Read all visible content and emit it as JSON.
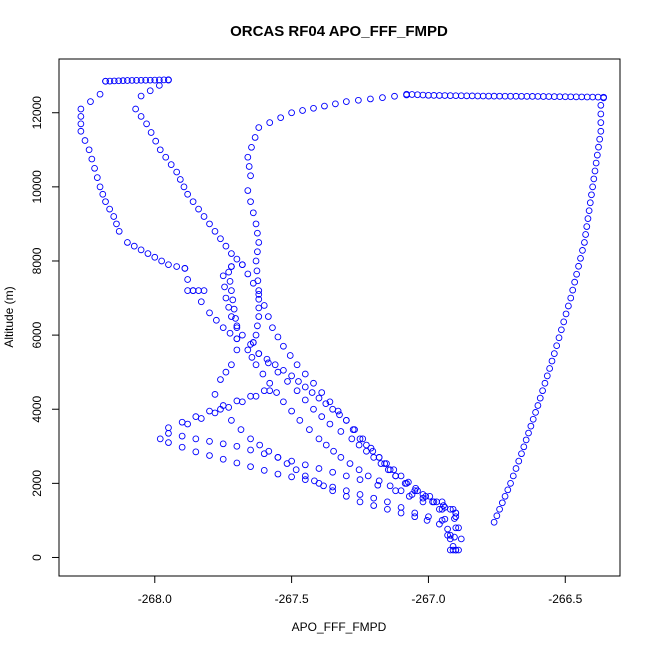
{
  "chart_data": {
    "type": "scatter",
    "title": "ORCAS RF04 APO_FFF_FMPD",
    "xlabel": "APO_FFF_FMPD",
    "ylabel": "Altitude (m)",
    "xlim": [
      -268.35,
      -266.3
    ],
    "ylim": [
      -500,
      13450
    ],
    "xticks": [
      -268.0,
      -267.5,
      -267.0,
      -266.5
    ],
    "xtick_labels": [
      "-268.0",
      "-267.5",
      "-267.0",
      "-266.5"
    ],
    "yticks": [
      0,
      2000,
      4000,
      6000,
      8000,
      10000,
      12000
    ],
    "ytick_labels": [
      "0",
      "2000",
      "4000",
      "6000",
      "8000",
      "10000",
      "12000"
    ],
    "marker": "open-circle",
    "color": "#0000ff",
    "grid": false,
    "legend": "none",
    "series": [
      {
        "path": [
          [
            -266.76,
            950
          ],
          [
            -266.74,
            1300
          ],
          [
            -266.7,
            2000
          ],
          [
            -266.66,
            2800
          ],
          [
            -266.6,
            4100
          ],
          [
            -266.54,
            5500
          ],
          [
            -266.48,
            7000
          ],
          [
            -266.43,
            8500
          ],
          [
            -266.4,
            10000
          ],
          [
            -266.37,
            11500
          ],
          [
            -266.37,
            12200
          ],
          [
            -266.36,
            12400
          ]
        ],
        "step": 0.015
      },
      {
        "path": [
          [
            -266.36,
            12420
          ],
          [
            -266.6,
            12440
          ],
          [
            -266.8,
            12450
          ],
          [
            -267.0,
            12470
          ],
          [
            -267.08,
            12500
          ]
        ],
        "step": 0.01
      },
      {
        "path": [
          [
            -267.08,
            12480
          ],
          [
            -267.3,
            12300
          ],
          [
            -267.5,
            12000
          ],
          [
            -267.62,
            11600
          ],
          [
            -267.66,
            10800
          ],
          [
            -267.65,
            10300
          ],
          [
            -267.66,
            9900
          ],
          [
            -267.63,
            9000
          ],
          [
            -267.62,
            8500
          ],
          [
            -267.63,
            8000
          ],
          [
            -267.62,
            7200
          ],
          [
            -267.62,
            6500
          ],
          [
            -267.63,
            6000
          ],
          [
            -267.64,
            5800
          ]
        ],
        "step": 0.02
      },
      {
        "path": [
          [
            -267.64,
            5800
          ],
          [
            -267.62,
            5500
          ],
          [
            -267.5,
            4900
          ],
          [
            -267.4,
            4300
          ],
          [
            -267.3,
            3700
          ],
          [
            -267.25,
            3200
          ],
          [
            -267.18,
            2700
          ],
          [
            -267.12,
            2200
          ],
          [
            -267.05,
            1800
          ],
          [
            -266.97,
            1500
          ],
          [
            -266.92,
            1300
          ],
          [
            -266.9,
            1100
          ],
          [
            -266.89,
            800
          ],
          [
            -266.88,
            500
          ],
          [
            -266.89,
            200
          ]
        ],
        "step": 0.018
      },
      {
        "path": [
          [
            -266.9,
            200
          ],
          [
            -266.92,
            600
          ],
          [
            -266.96,
            900
          ],
          [
            -267.05,
            1100
          ],
          [
            -267.15,
            1300
          ],
          [
            -267.25,
            1500
          ],
          [
            -267.35,
            1800
          ],
          [
            -267.45,
            2200
          ],
          [
            -267.55,
            2700
          ],
          [
            -267.65,
            3200
          ],
          [
            -267.72,
            3700
          ],
          [
            -267.76,
            4000
          ],
          [
            -267.78,
            4400
          ],
          [
            -267.76,
            4800
          ],
          [
            -267.72,
            5200
          ],
          [
            -267.7,
            5600
          ],
          [
            -267.7,
            6200
          ],
          [
            -267.71,
            6700
          ],
          [
            -267.72,
            7200
          ],
          [
            -267.73,
            7700
          ],
          [
            -267.72,
            7850
          ]
        ],
        "step": 0.022
      },
      {
        "path": [
          [
            -267.72,
            7850
          ],
          [
            -267.75,
            7600
          ],
          [
            -267.74,
            7000
          ],
          [
            -267.72,
            6500
          ],
          [
            -267.68,
            6000
          ],
          [
            -267.62,
            5500
          ],
          [
            -267.55,
            5000
          ],
          [
            -267.48,
            4500
          ],
          [
            -267.42,
            4000
          ],
          [
            -267.36,
            3600
          ],
          [
            -267.28,
            3200
          ],
          [
            -267.2,
            2700
          ],
          [
            -267.12,
            2200
          ],
          [
            -267.04,
            1800
          ],
          [
            -266.95,
            1500
          ],
          [
            -266.91,
            1300
          ],
          [
            -266.9,
            800
          ],
          [
            -266.91,
            300
          ],
          [
            -266.9,
            200
          ]
        ],
        "step": 0.02
      },
      {
        "path": [
          [
            -266.91,
            200
          ],
          [
            -266.95,
            1000
          ],
          [
            -267.05,
            1200
          ],
          [
            -267.15,
            1500
          ],
          [
            -267.25,
            1700
          ],
          [
            -267.35,
            1900
          ],
          [
            -267.45,
            2100
          ],
          [
            -267.55,
            2250
          ],
          [
            -267.65,
            2450
          ],
          [
            -267.75,
            2650
          ],
          [
            -267.85,
            2850
          ],
          [
            -267.95,
            3100
          ],
          [
            -267.98,
            3200
          ],
          [
            -267.95,
            3500
          ],
          [
            -267.85,
            3800
          ],
          [
            -267.75,
            4100
          ],
          [
            -267.65,
            4350
          ],
          [
            -267.6,
            4500
          ]
        ],
        "step": 0.025
      },
      {
        "path": [
          [
            -267.58,
            4500
          ],
          [
            -267.68,
            4200
          ],
          [
            -267.78,
            3900
          ],
          [
            -267.88,
            3600
          ],
          [
            -267.95,
            3350
          ],
          [
            -267.85,
            3200
          ],
          [
            -267.7,
            3000
          ],
          [
            -267.55,
            2700
          ],
          [
            -267.4,
            2400
          ],
          [
            -267.25,
            2100
          ],
          [
            -267.12,
            1800
          ],
          [
            -267.02,
            1500
          ],
          [
            -266.96,
            1300
          ],
          [
            -266.9,
            1200
          ]
        ],
        "step": 0.028
      },
      {
        "path": [
          [
            -266.9,
            1200
          ],
          [
            -266.98,
            1500
          ],
          [
            -267.1,
            1800
          ],
          [
            -267.22,
            2200
          ],
          [
            -267.32,
            2700
          ],
          [
            -267.4,
            3200
          ],
          [
            -267.47,
            3700
          ],
          [
            -267.53,
            4200
          ],
          [
            -267.58,
            4700
          ],
          [
            -267.63,
            5200
          ],
          [
            -267.66,
            5600
          ],
          [
            -267.7,
            5900
          ],
          [
            -267.75,
            6200
          ],
          [
            -267.8,
            6600
          ],
          [
            -267.83,
            6900
          ],
          [
            -267.86,
            7200
          ],
          [
            -267.88,
            7500
          ],
          [
            -267.89,
            7800
          ]
        ],
        "step": 0.02
      },
      {
        "path": [
          [
            -267.89,
            7800
          ],
          [
            -267.95,
            7900
          ],
          [
            -268.0,
            8100
          ],
          [
            -268.05,
            8300
          ],
          [
            -268.1,
            8500
          ],
          [
            -268.13,
            8800
          ],
          [
            -268.15,
            9200
          ],
          [
            -268.18,
            9600
          ],
          [
            -268.2,
            10000
          ],
          [
            -268.22,
            10500
          ],
          [
            -268.24,
            11000
          ],
          [
            -268.27,
            11500
          ],
          [
            -268.27,
            11900
          ],
          [
            -268.27,
            12100
          ],
          [
            -268.2,
            12500
          ],
          [
            -268.18,
            12850
          ]
        ],
        "step": 0.018
      },
      {
        "path": [
          [
            -268.18,
            12850
          ],
          [
            -268.1,
            12870
          ],
          [
            -268.0,
            12880
          ],
          [
            -267.95,
            12890
          ]
        ],
        "step": 0.008
      },
      {
        "path": [
          [
            -267.95,
            12880
          ],
          [
            -268.05,
            12450
          ],
          [
            -268.07,
            12100
          ],
          [
            -268.03,
            11700
          ],
          [
            -267.98,
            11000
          ],
          [
            -267.92,
            10400
          ],
          [
            -267.88,
            9800
          ],
          [
            -267.82,
            9200
          ],
          [
            -267.76,
            8600
          ],
          [
            -267.72,
            8200
          ],
          [
            -267.68,
            7900
          ]
        ],
        "step": 0.018
      },
      {
        "path": [
          [
            -267.68,
            7900
          ],
          [
            -267.64,
            7400
          ],
          [
            -267.6,
            6800
          ],
          [
            -267.57,
            6200
          ],
          [
            -267.53,
            5700
          ],
          [
            -267.48,
            5200
          ],
          [
            -267.42,
            4700
          ],
          [
            -267.36,
            4200
          ],
          [
            -267.3,
            3700
          ],
          [
            -267.24,
            3200
          ],
          [
            -267.18,
            2700
          ],
          [
            -267.1,
            2200
          ],
          [
            -267.02,
            1700
          ],
          [
            -266.95,
            1300
          ],
          [
            -266.92,
            500
          ],
          [
            -266.92,
            200
          ]
        ],
        "step": 0.02
      },
      {
        "path": [
          [
            -267.88,
            7200
          ],
          [
            -267.84,
            7200
          ],
          [
            -267.82,
            7200
          ]
        ],
        "step": 0.008
      }
    ]
  }
}
